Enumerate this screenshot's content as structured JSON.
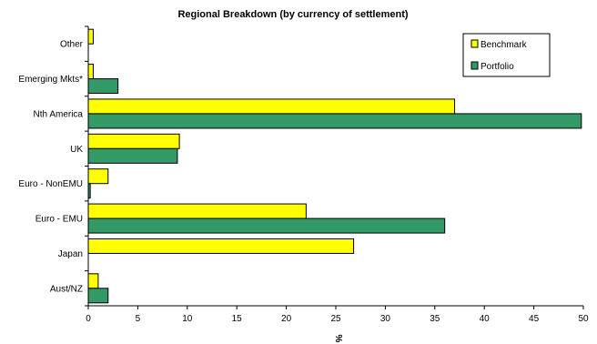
{
  "chart_data": {
    "type": "bar",
    "orientation": "horizontal",
    "title": "Regional Breakdown (by currency of settlement)",
    "xlabel": "%",
    "ylabel": "",
    "xlim": [
      0,
      50
    ],
    "x_ticks": [
      0,
      5,
      10,
      15,
      20,
      25,
      30,
      35,
      40,
      45,
      50
    ],
    "categories": [
      "Other",
      "Emerging Mkts*",
      "Nth America",
      "UK",
      "Euro - NonEMU",
      "Euro - EMU",
      "Japan",
      "Aust/NZ"
    ],
    "series": [
      {
        "name": "Benchmark",
        "color": "#ffff00",
        "values": [
          0.5,
          0.5,
          37,
          9.2,
          2,
          22,
          26.8,
          1
        ]
      },
      {
        "name": "Portfolio",
        "color": "#339966",
        "values": [
          0,
          3,
          49.8,
          9,
          0.2,
          36,
          0,
          2
        ]
      }
    ],
    "grid": false,
    "legend_position": "top-right"
  }
}
